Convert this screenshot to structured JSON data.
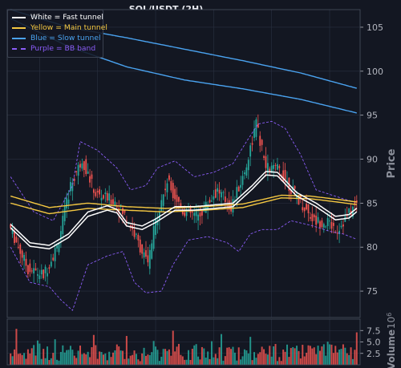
{
  "title": "SOL/USDT (2H)",
  "legend": [
    {
      "label": "White = Fast tunnel",
      "color": "#ffffff",
      "dash": false
    },
    {
      "label": "Yellow = Main tunnel",
      "color": "#f5c842",
      "dash": false
    },
    {
      "label": "Blue = Slow tunnel",
      "color": "#4aa3f0",
      "dash": false
    },
    {
      "label": "Purple = BB band",
      "color": "#8a5cf6",
      "dash": true
    }
  ],
  "colors": {
    "background": "#131722",
    "grid": "#2a3040",
    "up": "#26a69a",
    "down": "#ef5350",
    "text": "#b2b5be"
  },
  "chart_data": [
    {
      "type": "line",
      "x_count": 180,
      "ylabel": "Price",
      "ylim": [
        72,
        107
      ],
      "yticks": [
        75,
        80,
        85,
        90,
        95,
        100,
        105
      ],
      "grid": true,
      "legend_position": "top-left",
      "price_path": [
        [
          0,
          82.6
        ],
        [
          10,
          77.5
        ],
        [
          18,
          76.8
        ],
        [
          25,
          80
        ],
        [
          32,
          87
        ],
        [
          38,
          90
        ],
        [
          45,
          86
        ],
        [
          55,
          85.2
        ],
        [
          62,
          83
        ],
        [
          68,
          80
        ],
        [
          72,
          78
        ],
        [
          76,
          83
        ],
        [
          82,
          87.5
        ],
        [
          90,
          84.2
        ],
        [
          98,
          83.5
        ],
        [
          108,
          86.5
        ],
        [
          115,
          84.5
        ],
        [
          122,
          88.5
        ],
        [
          128,
          94
        ],
        [
          133,
          89
        ],
        [
          140,
          88.8
        ],
        [
          148,
          86
        ],
        [
          158,
          83
        ],
        [
          165,
          82.8
        ],
        [
          170,
          82
        ],
        [
          175,
          83.5
        ],
        [
          180,
          85
        ]
      ],
      "fast_tunnel_upper": [
        [
          0,
          82.6
        ],
        [
          10,
          80.5
        ],
        [
          20,
          80.2
        ],
        [
          30,
          81.5
        ],
        [
          40,
          84
        ],
        [
          50,
          84.7
        ],
        [
          55,
          84.3
        ],
        [
          60,
          82.8
        ],
        [
          68,
          82.4
        ],
        [
          75,
          83.2
        ],
        [
          85,
          84.6
        ],
        [
          95,
          84.6
        ],
        [
          105,
          84.8
        ],
        [
          115,
          85
        ],
        [
          125,
          87
        ],
        [
          132,
          88.6
        ],
        [
          138,
          88.5
        ],
        [
          148,
          86.2
        ],
        [
          158,
          85
        ],
        [
          168,
          83.5
        ],
        [
          175,
          83.7
        ],
        [
          180,
          84.6
        ]
      ],
      "fast_tunnel_lower": [
        [
          0,
          82.2
        ],
        [
          10,
          80.1
        ],
        [
          20,
          79.8
        ],
        [
          30,
          81.1
        ],
        [
          40,
          83.5
        ],
        [
          50,
          84.2
        ],
        [
          55,
          83.9
        ],
        [
          60,
          82.4
        ],
        [
          68,
          82
        ],
        [
          75,
          82.8
        ],
        [
          85,
          84.2
        ],
        [
          95,
          84.2
        ],
        [
          105,
          84.4
        ],
        [
          115,
          84.6
        ],
        [
          125,
          86.6
        ],
        [
          132,
          88.2
        ],
        [
          138,
          88.1
        ],
        [
          148,
          85.8
        ],
        [
          158,
          84.6
        ],
        [
          168,
          83.1
        ],
        [
          175,
          83.3
        ],
        [
          180,
          84.2
        ]
      ],
      "main_tunnel_upper": [
        [
          0,
          85.8
        ],
        [
          20,
          84.5
        ],
        [
          40,
          85
        ],
        [
          60,
          84.6
        ],
        [
          80,
          84.4
        ],
        [
          100,
          84.6
        ],
        [
          120,
          84.9
        ],
        [
          140,
          85.9
        ],
        [
          155,
          85.8
        ],
        [
          170,
          85.4
        ],
        [
          180,
          85.1
        ]
      ],
      "main_tunnel_lower": [
        [
          0,
          85
        ],
        [
          20,
          83.8
        ],
        [
          40,
          84.4
        ],
        [
          60,
          84.2
        ],
        [
          80,
          84
        ],
        [
          100,
          84.2
        ],
        [
          120,
          84.5
        ],
        [
          140,
          85.6
        ],
        [
          155,
          85.5
        ],
        [
          170,
          85.1
        ],
        [
          180,
          84.8
        ]
      ],
      "slow_tunnel_upper": [
        [
          0,
          107
        ],
        [
          30,
          105
        ],
        [
          60,
          103.8
        ],
        [
          90,
          102.5
        ],
        [
          120,
          101.2
        ],
        [
          150,
          99.8
        ],
        [
          180,
          98
        ]
      ],
      "slow_tunnel_lower": [
        [
          0,
          106
        ],
        [
          30,
          102.8
        ],
        [
          60,
          100.5
        ],
        [
          90,
          99
        ],
        [
          120,
          98
        ],
        [
          150,
          96.8
        ],
        [
          180,
          95.2
        ]
      ],
      "bb_upper": [
        [
          0,
          88
        ],
        [
          12,
          84
        ],
        [
          22,
          83
        ],
        [
          32,
          87
        ],
        [
          36,
          92
        ],
        [
          45,
          91
        ],
        [
          55,
          89
        ],
        [
          62,
          86.5
        ],
        [
          70,
          87
        ],
        [
          76,
          89
        ],
        [
          85,
          89.8
        ],
        [
          95,
          88
        ],
        [
          105,
          88.5
        ],
        [
          115,
          89.5
        ],
        [
          122,
          92
        ],
        [
          128,
          94
        ],
        [
          135,
          94.3
        ],
        [
          142,
          93.5
        ],
        [
          150,
          90.5
        ],
        [
          158,
          86.5
        ],
        [
          165,
          86
        ],
        [
          172,
          85.5
        ],
        [
          180,
          85
        ]
      ],
      "bb_lower": [
        [
          0,
          80
        ],
        [
          10,
          76
        ],
        [
          20,
          75.5
        ],
        [
          26,
          74
        ],
        [
          32,
          72.8
        ],
        [
          40,
          78
        ],
        [
          50,
          79
        ],
        [
          58,
          79.5
        ],
        [
          64,
          76
        ],
        [
          70,
          74.8
        ],
        [
          78,
          75
        ],
        [
          84,
          78
        ],
        [
          92,
          80.8
        ],
        [
          102,
          81.2
        ],
        [
          112,
          80.5
        ],
        [
          118,
          79.5
        ],
        [
          124,
          81.5
        ],
        [
          130,
          82
        ],
        [
          138,
          82
        ],
        [
          145,
          83
        ],
        [
          155,
          82.5
        ],
        [
          165,
          81.8
        ],
        [
          172,
          81.5
        ],
        [
          180,
          80.8
        ]
      ]
    },
    {
      "type": "bar",
      "ylabel": "Volume",
      "exponent_label": "10",
      "exponent_value": "6",
      "ylim": [
        0,
        10
      ],
      "yticks": [
        2.5,
        5.0,
        7.5
      ],
      "ytick_labels": [
        "2.5",
        "5.0",
        "7.5"
      ],
      "grid": true
    }
  ]
}
